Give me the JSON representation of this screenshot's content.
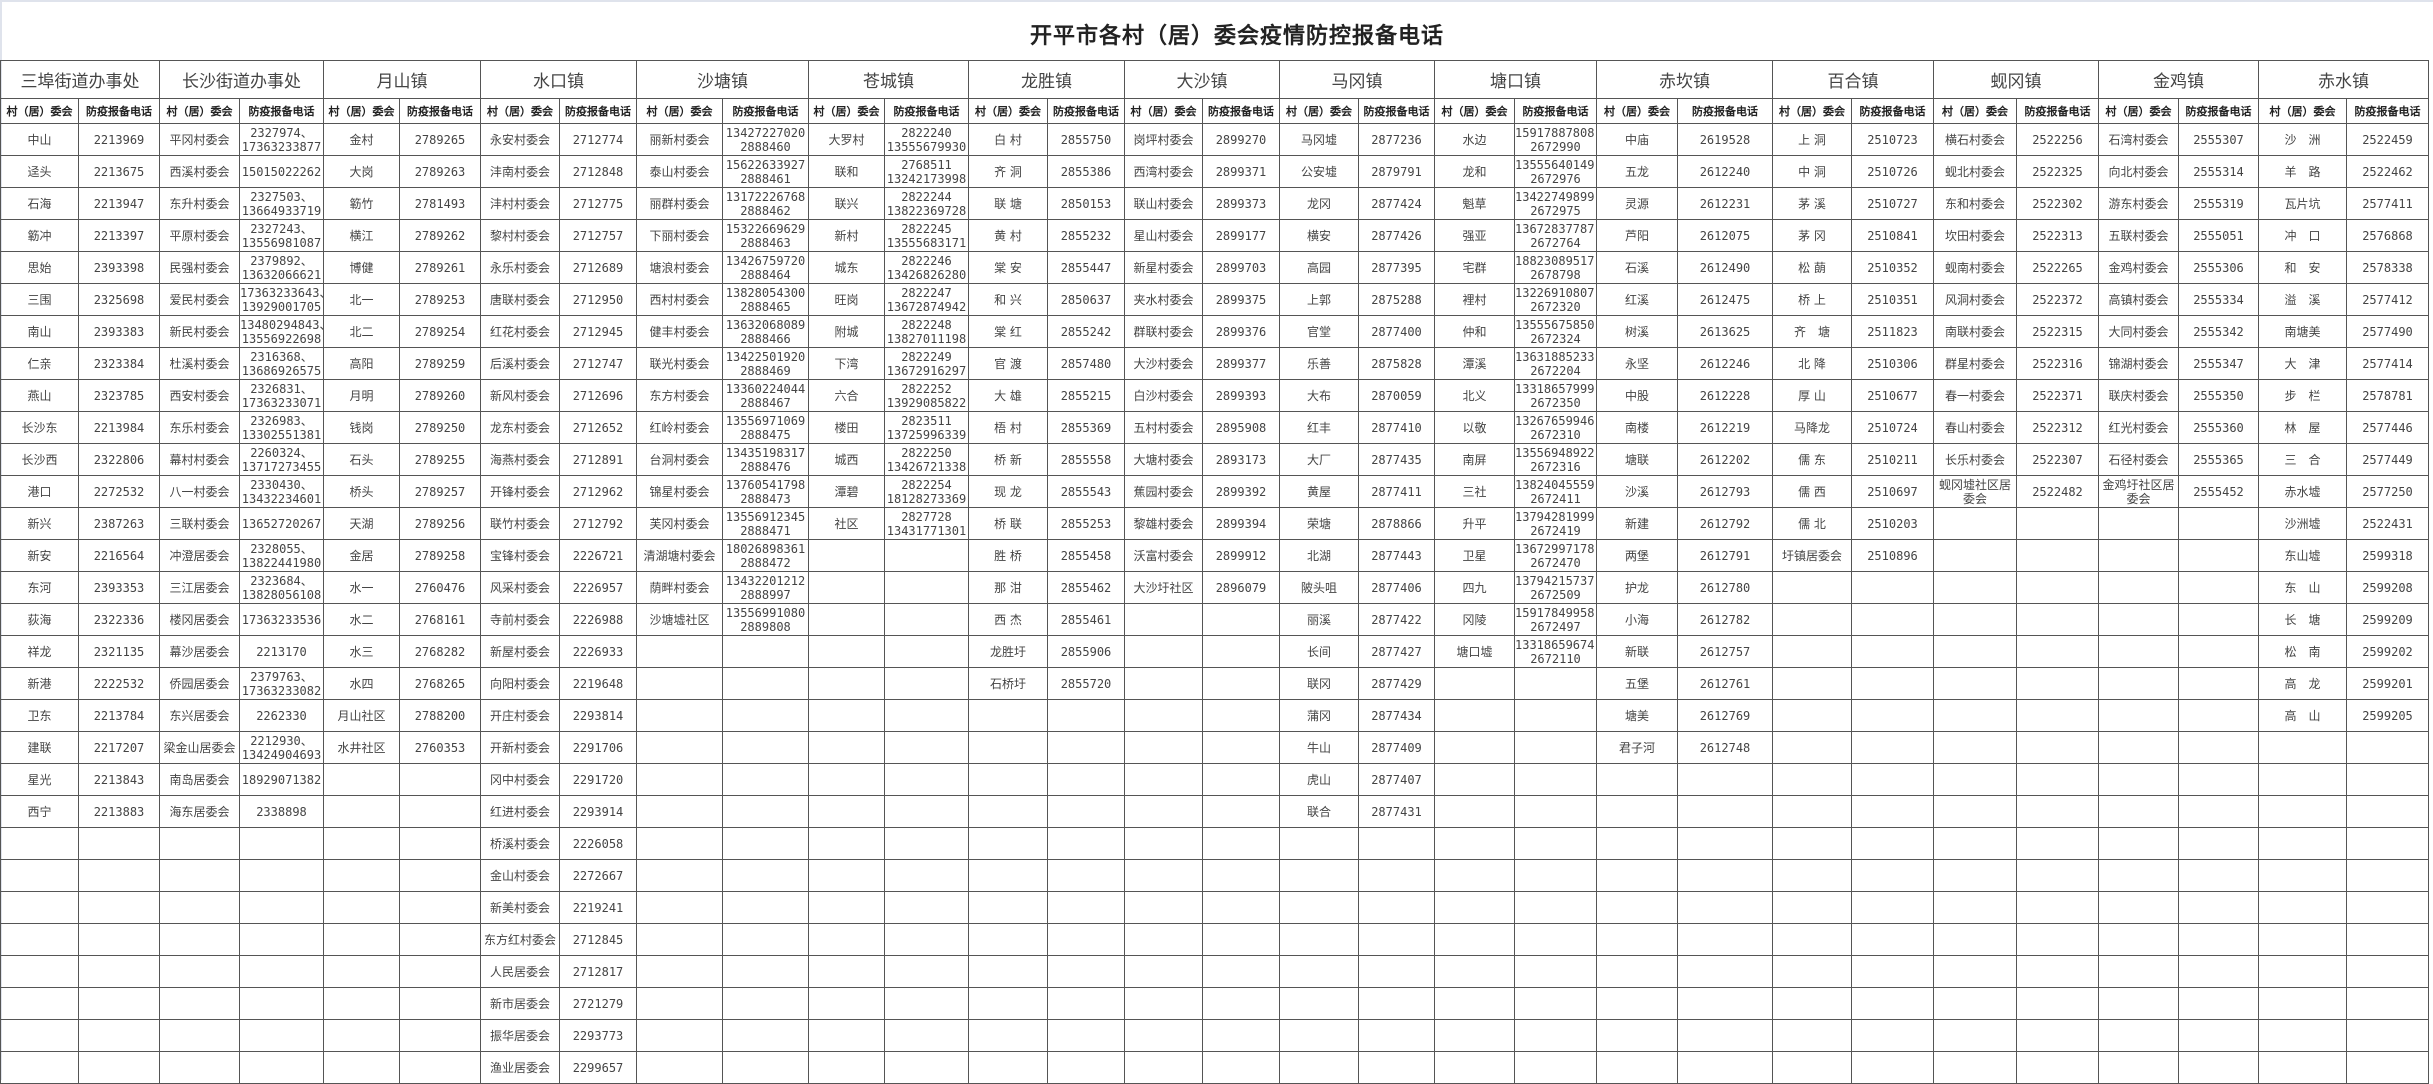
{
  "title": "开平市各村（居）委会疫情防控报备电话",
  "columns": {
    "committee": "村（居）委会",
    "phone": "防疫报备电话"
  },
  "towns": [
    {
      "name": "三埠街道办事处",
      "rows": [
        [
          "中山",
          "2213969"
        ],
        [
          "迳头",
          "2213675"
        ],
        [
          "石海",
          "2213947"
        ],
        [
          "簕冲",
          "2213397"
        ],
        [
          "思始",
          "2393398"
        ],
        [
          "三围",
          "2325698"
        ],
        [
          "南山",
          "2393383"
        ],
        [
          "仁亲",
          "2323384"
        ],
        [
          "燕山",
          "2323785"
        ],
        [
          "长沙东",
          "2213984"
        ],
        [
          "长沙西",
          "2322806"
        ],
        [
          "港口",
          "2272532"
        ],
        [
          "新兴",
          "2387263"
        ],
        [
          "新安",
          "2216564"
        ],
        [
          "东河",
          "2393353"
        ],
        [
          "荻海",
          "2322336"
        ],
        [
          "祥龙",
          "2321135"
        ],
        [
          "新港",
          "2222532"
        ],
        [
          "卫东",
          "2213784"
        ],
        [
          "建联",
          "2217207"
        ],
        [
          "星光",
          "2213843"
        ],
        [
          "西宁",
          "2213883"
        ]
      ]
    },
    {
      "name": "长沙街道办事处",
      "rows": [
        [
          "平冈村委会",
          "2327974、\n17363233877"
        ],
        [
          "西溪村委会",
          "15015022262"
        ],
        [
          "东升村委会",
          "2327503、\n13664933719"
        ],
        [
          "平原村委会",
          "2327243、\n13556981087"
        ],
        [
          "民强村委会",
          "2379892、\n13632066621"
        ],
        [
          "爱民村委会",
          "17363233643、\n13929001705"
        ],
        [
          "新民村委会",
          "13480294843、\n13556922698"
        ],
        [
          "杜溪村委会",
          "2316368、\n13686926575"
        ],
        [
          "西安村委会",
          "2326831、\n17363233071"
        ],
        [
          "东乐村委会",
          "2326983、\n13302551381"
        ],
        [
          "幕村村委会",
          "2260324、\n13717273455"
        ],
        [
          "八一村委会",
          "2330430、\n13432234601"
        ],
        [
          "三联村委会",
          "13652720267"
        ],
        [
          "冲澄居委会",
          "2328055、\n13822441980"
        ],
        [
          "三江居委会",
          "2323684、\n13828056108"
        ],
        [
          "楼冈居委会",
          "17363233536"
        ],
        [
          "幕沙居委会",
          "2213170"
        ],
        [
          "侨园居委会",
          "2379763、\n17363233082"
        ],
        [
          "东兴居委会",
          "2262330"
        ],
        [
          "梁金山居委会",
          "2212930、\n13424904693"
        ],
        [
          "南岛居委会",
          "18929071382"
        ],
        [
          "海东居委会",
          "2338898"
        ]
      ]
    },
    {
      "name": "月山镇",
      "rows": [
        [
          "金村",
          "2789265"
        ],
        [
          "大岗",
          "2789263"
        ],
        [
          "簕竹",
          "2781493"
        ],
        [
          "横江",
          "2789262"
        ],
        [
          "博健",
          "2789261"
        ],
        [
          "北一",
          "2789253"
        ],
        [
          "北二",
          "2789254"
        ],
        [
          "高阳",
          "2789259"
        ],
        [
          "月明",
          "2789260"
        ],
        [
          "钱岗",
          "2789250"
        ],
        [
          "石头",
          "2789255"
        ],
        [
          "桥头",
          "2789257"
        ],
        [
          "天湖",
          "2789256"
        ],
        [
          "金居",
          "2789258"
        ],
        [
          "水一",
          "2760476"
        ],
        [
          "水二",
          "2768161"
        ],
        [
          "水三",
          "2768282"
        ],
        [
          "水四",
          "2768265"
        ],
        [
          "月山社区",
          "2788200"
        ],
        [
          "水井社区",
          "2760353"
        ]
      ]
    },
    {
      "name": "水口镇",
      "rows": [
        [
          "永安村委会",
          "2712774"
        ],
        [
          "沣南村委会",
          "2712848"
        ],
        [
          "沣村村委会",
          "2712775"
        ],
        [
          "黎村村委会",
          "2712757"
        ],
        [
          "永乐村委会",
          "2712689"
        ],
        [
          "唐联村委会",
          "2712950"
        ],
        [
          "红花村委会",
          "2712945"
        ],
        [
          "后溪村委会",
          "2712747"
        ],
        [
          "新风村委会",
          "2712696"
        ],
        [
          "龙东村委会",
          "2712652"
        ],
        [
          "海燕村委会",
          "2712891"
        ],
        [
          "开锋村委会",
          "2712962"
        ],
        [
          "联竹村委会",
          "2712792"
        ],
        [
          "宝锋村委会",
          "2226721"
        ],
        [
          "风采村委会",
          "2226957"
        ],
        [
          "寺前村委会",
          "2226988"
        ],
        [
          "新屋村委会",
          "2226933"
        ],
        [
          "向阳村委会",
          "2219648"
        ],
        [
          "开庄村委会",
          "2293814"
        ],
        [
          "开新村委会",
          "2291706"
        ],
        [
          "冈中村委会",
          "2291720"
        ],
        [
          "红进村委会",
          "2293914"
        ],
        [
          "桥溪村委会",
          "2226058"
        ],
        [
          "金山村委会",
          "2272667"
        ],
        [
          "新美村委会",
          "2219241"
        ],
        [
          "东方红村委会",
          "2712845"
        ],
        [
          "人民居委会",
          "2712817"
        ],
        [
          "新市居委会",
          "2721279"
        ],
        [
          "振华居委会",
          "2293773"
        ],
        [
          "渔业居委会",
          "2299657"
        ]
      ]
    },
    {
      "name": "沙塘镇",
      "rows": [
        [
          "丽新村委会",
          "13427227020\n2888460"
        ],
        [
          "泰山村委会",
          "15622633927\n2888461"
        ],
        [
          "丽群村委会",
          "13172226768\n2888462"
        ],
        [
          "下丽村委会",
          "15322669629\n2888463"
        ],
        [
          "塘浪村委会",
          "13426759720\n2888464"
        ],
        [
          "西村村委会",
          "13828054300\n2888465"
        ],
        [
          "健丰村委会",
          "13632068089\n2888466"
        ],
        [
          "联光村委会",
          "13422501920\n2888469"
        ],
        [
          "东方村委会",
          "13360224044\n2888467"
        ],
        [
          "红岭村委会",
          "13556971069\n2888475"
        ],
        [
          "台洞村委会",
          "13435198317\n2888476"
        ],
        [
          "锦星村委会",
          "13760541798\n2888473"
        ],
        [
          "芙冈村委会",
          "13556912345\n2888471"
        ],
        [
          "清湖塘村委会",
          "18026898361\n2888472"
        ],
        [
          "荫畔村委会",
          "13432201212\n2888997"
        ],
        [
          "沙塘墟社区",
          "13556991080\n2889808"
        ]
      ]
    },
    {
      "name": "苍城镇",
      "rows": [
        [
          "大罗村",
          "2822240\n13555679930"
        ],
        [
          "联和",
          "2768511\n13242173998"
        ],
        [
          "联兴",
          "2822244\n13822369728"
        ],
        [
          "新村",
          "2822245\n13555683171"
        ],
        [
          "城东",
          "2822246\n13426826280"
        ],
        [
          "旺岗",
          "2822247\n13672874942"
        ],
        [
          "附城",
          "2822248\n13827011198"
        ],
        [
          "下湾",
          "2822249\n13672916297"
        ],
        [
          "六合",
          "2822252\n13929085822"
        ],
        [
          "楼田",
          "2823511\n13725996339"
        ],
        [
          "城西",
          "2822250\n13426721338"
        ],
        [
          "潭碧",
          "2822254\n18128273369"
        ],
        [
          "社区",
          "2827728\n13431771301"
        ]
      ]
    },
    {
      "name": "龙胜镇",
      "rows": [
        [
          "白 村",
          "2855750"
        ],
        [
          "齐 洞",
          "2855386"
        ],
        [
          "联 塘",
          "2850153"
        ],
        [
          "黄 村",
          "2855232"
        ],
        [
          "棠 安",
          "2855447"
        ],
        [
          "和 兴",
          "2850637"
        ],
        [
          "棠 红",
          "2855242"
        ],
        [
          "官 渡",
          "2857480"
        ],
        [
          "大 雄",
          "2855215"
        ],
        [
          "梧 村",
          "2855369"
        ],
        [
          "桥 新",
          "2855558"
        ],
        [
          "现 龙",
          "2855543"
        ],
        [
          "桥 联",
          "2855253"
        ],
        [
          "胜 桥",
          "2855458"
        ],
        [
          "那 泔",
          "2855462"
        ],
        [
          "西 杰",
          "2855461"
        ],
        [
          "龙胜圩",
          "2855906"
        ],
        [
          "石桥圩",
          "2855720"
        ]
      ]
    },
    {
      "name": "大沙镇",
      "rows": [
        [
          "岗坪村委会",
          "2899270"
        ],
        [
          "西湾村委会",
          "2899371"
        ],
        [
          "联山村委会",
          "2899373"
        ],
        [
          "星山村委会",
          "2899177"
        ],
        [
          "新星村委会",
          "2899703"
        ],
        [
          "夹水村委会",
          "2899375"
        ],
        [
          "群联村委会",
          "2899376"
        ],
        [
          "大沙村委会",
          "2899377"
        ],
        [
          "白沙村委会",
          "2899393"
        ],
        [
          "五村村委会",
          "2895908"
        ],
        [
          "大塘村委会",
          "2893173"
        ],
        [
          "蕉园村委会",
          "2899392"
        ],
        [
          "黎雄村委会",
          "2899394"
        ],
        [
          "沃富村委会",
          "2899912"
        ],
        [
          "大沙圩社区",
          "2896079"
        ]
      ]
    },
    {
      "name": "马冈镇",
      "rows": [
        [
          "马冈墟",
          "2877236"
        ],
        [
          "公安墟",
          "2879791"
        ],
        [
          "龙冈",
          "2877424"
        ],
        [
          "横安",
          "2877426"
        ],
        [
          "高园",
          "2877395"
        ],
        [
          "上郭",
          "2875288"
        ],
        [
          "官堂",
          "2877400"
        ],
        [
          "乐善",
          "2875828"
        ],
        [
          "大布",
          "2870059"
        ],
        [
          "红丰",
          "2877410"
        ],
        [
          "大厂",
          "2877435"
        ],
        [
          "黄屋",
          "2877411"
        ],
        [
          "荣塘",
          "2878866"
        ],
        [
          "北湖",
          "2877443"
        ],
        [
          "陂头咀",
          "2877406"
        ],
        [
          "丽溪",
          "2877422"
        ],
        [
          "长间",
          "2877427"
        ],
        [
          "联冈",
          "2877429"
        ],
        [
          "蒲冈",
          "2877434"
        ],
        [
          "牛山",
          "2877409"
        ],
        [
          "虎山",
          "2877407"
        ],
        [
          "联合",
          "2877431"
        ]
      ]
    },
    {
      "name": "塘口镇",
      "rows": [
        [
          "水边",
          "15917887808，\n2672990"
        ],
        [
          "龙和",
          "13555640149，\n2672976"
        ],
        [
          "魁草",
          "13422749899，\n2672975"
        ],
        [
          "强亚",
          "13672837787，\n2672764"
        ],
        [
          "宅群",
          "18823089517，\n2678798"
        ],
        [
          "裡村",
          "13226910807，\n2672320"
        ],
        [
          "仲和",
          "13555675850，\n2672324"
        ],
        [
          "潭溪",
          "13631885233，\n2672204"
        ],
        [
          "北义",
          "13318657999，\n2672350"
        ],
        [
          "以敬",
          "13267659946，\n2672310"
        ],
        [
          "南屏",
          "13556948922，\n2672316"
        ],
        [
          "三社",
          "13824045559，\n2672411"
        ],
        [
          "升平",
          "13794281999，\n2672419"
        ],
        [
          "卫星",
          "13672997178，\n2672470"
        ],
        [
          "四九",
          "13794215737，\n2672509"
        ],
        [
          "冈陵",
          "15917849958，\n2672497"
        ],
        [
          "塘口墟",
          "13318659674，\n2672110"
        ]
      ]
    },
    {
      "name": "赤坎镇",
      "rows": [
        [
          "中庙",
          "2619528"
        ],
        [
          "五龙",
          "2612240"
        ],
        [
          "灵源",
          "2612231"
        ],
        [
          "芦阳",
          "2612075"
        ],
        [
          "石溪",
          "2612490"
        ],
        [
          "红溪",
          "2612475"
        ],
        [
          "树溪",
          "2613625"
        ],
        [
          "永坚",
          "2612246"
        ],
        [
          "中股",
          "2612228"
        ],
        [
          "南楼",
          "2612219"
        ],
        [
          "塘联",
          "2612202"
        ],
        [
          "沙溪",
          "2612793"
        ],
        [
          "新建",
          "2612792"
        ],
        [
          "两堡",
          "2612791"
        ],
        [
          "护龙",
          "2612780"
        ],
        [
          "小海",
          "2612782"
        ],
        [
          "新联",
          "2612757"
        ],
        [
          "五堡",
          "2612761"
        ],
        [
          "塘美",
          "2612769"
        ],
        [
          "君子河",
          "2612748"
        ]
      ]
    },
    {
      "name": "百合镇",
      "rows": [
        [
          "上 洞",
          "2510723"
        ],
        [
          "中 洞",
          "2510726"
        ],
        [
          "茅 溪",
          "2510727"
        ],
        [
          "茅 冈",
          "2510841"
        ],
        [
          "松 蓢",
          "2510352"
        ],
        [
          "桥 上",
          "2510351"
        ],
        [
          "齐　塘",
          "2511823"
        ],
        [
          "北 降",
          "2510306"
        ],
        [
          "厚 山",
          "2510677"
        ],
        [
          "马降龙",
          "2510724"
        ],
        [
          "儒 东",
          "2510211"
        ],
        [
          "儒 西",
          "2510697"
        ],
        [
          "儒 北",
          "2510203"
        ],
        [
          "圩镇居委会",
          "2510896"
        ]
      ]
    },
    {
      "name": "蚬冈镇",
      "rows": [
        [
          "横石村委会",
          "2522256"
        ],
        [
          "蚬北村委会",
          "2522325"
        ],
        [
          "东和村委会",
          "2522302"
        ],
        [
          "坎田村委会",
          "2522313"
        ],
        [
          "蚬南村委会",
          "2522265"
        ],
        [
          "风洞村委会",
          "2522372"
        ],
        [
          "南联村委会",
          "2522315"
        ],
        [
          "群星村委会",
          "2522316"
        ],
        [
          "春一村委会",
          "2522371"
        ],
        [
          "春山村委会",
          "2522312"
        ],
        [
          "长乐村委会",
          "2522307"
        ],
        [
          "蚬冈墟社区居委会",
          "2522482"
        ]
      ]
    },
    {
      "name": "金鸡镇",
      "rows": [
        [
          "石湾村委会",
          "2555307"
        ],
        [
          "向北村委会",
          "2555314"
        ],
        [
          "游东村委会",
          "2555319"
        ],
        [
          "五联村委会",
          "2555051"
        ],
        [
          "金鸡村委会",
          "2555306"
        ],
        [
          "高镇村委会",
          "2555334"
        ],
        [
          "大同村委会",
          "2555342"
        ],
        [
          "锦湖村委会",
          "2555347"
        ],
        [
          "联庆村委会",
          "2555350"
        ],
        [
          "红光村委会",
          "2555360"
        ],
        [
          "石径村委会",
          "2555365"
        ],
        [
          "金鸡圩社区居委会",
          "2555452"
        ]
      ]
    },
    {
      "name": "赤水镇",
      "rows": [
        [
          "沙　洲",
          "2522459"
        ],
        [
          "羊　路",
          "2522462"
        ],
        [
          "瓦片坑",
          "2577411"
        ],
        [
          "冲　口",
          "2576868"
        ],
        [
          "和　安",
          "2578338"
        ],
        [
          "溢　溪",
          "2577412"
        ],
        [
          "南塘美",
          "2577490"
        ],
        [
          "大　津",
          "2577414"
        ],
        [
          "步　栏",
          "2578781"
        ],
        [
          "林　屋",
          "2577446"
        ],
        [
          "三　合",
          "2577449"
        ],
        [
          "赤水墟",
          "2577250"
        ],
        [
          "沙洲墟",
          "2522431"
        ],
        [
          "东山墟",
          "2599318"
        ],
        [
          "东　山",
          "2599208"
        ],
        [
          "长　塘",
          "2599209"
        ],
        [
          "松　南",
          "2599202"
        ],
        [
          "高　龙",
          "2599201"
        ],
        [
          "高　山",
          "2599205"
        ]
      ]
    }
  ]
}
